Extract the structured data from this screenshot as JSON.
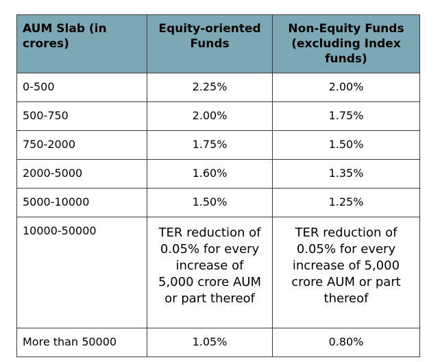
{
  "table": {
    "headers": [
      "AUM Slab (in crores)",
      "Equity-oriented Funds",
      "Non-Equity Funds (excluding Index funds)"
    ],
    "rows": [
      [
        "0-500",
        "2.25%",
        "2.00%"
      ],
      [
        "500-750",
        "2.00%",
        "1.75%"
      ],
      [
        "750-2000",
        "1.75%",
        "1.50%"
      ],
      [
        "2000-5000",
        "1.60%",
        "1.35%"
      ],
      [
        "5000-10000",
        "1.50%",
        "1.25%"
      ],
      [
        "10000-50000",
        "TER reduction of 0.05% for every increase of 5,000 crore AUM or part thereof",
        "TER reduction of 0.05% for every increase of 5,000 crore AUM or part thereof"
      ],
      [
        "More than 50000",
        "1.05%",
        "0.80%"
      ]
    ],
    "header_bg": "#7ba8b4",
    "border_color": "#3a3a3a"
  }
}
